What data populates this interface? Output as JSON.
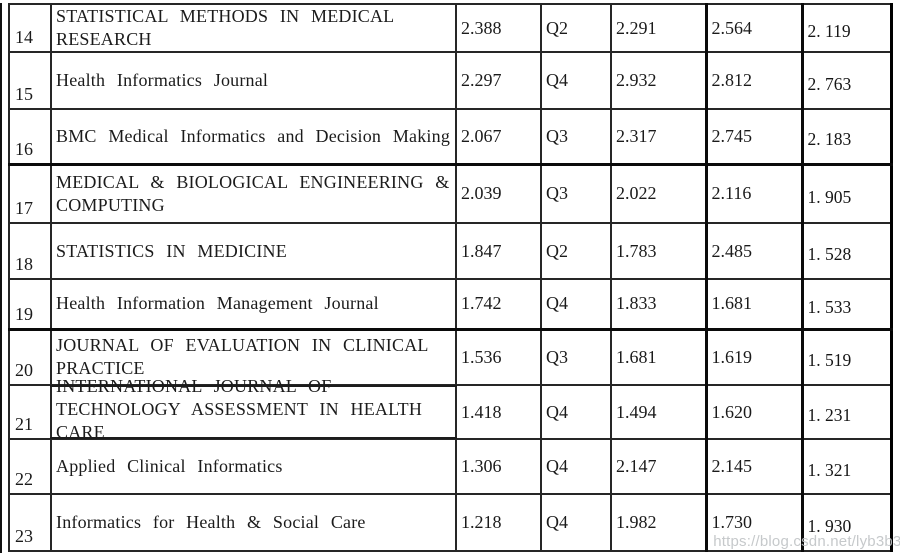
{
  "watermark": {
    "text": "https://blog.csdn.net/lyb3b3b"
  },
  "table": {
    "rows": [
      {
        "num": "14",
        "name_lines": [
          "STATISTICAL METHODS IN MEDICAL",
          "RESEARCH"
        ],
        "values": [
          "2.388",
          "Q2",
          "2.291",
          "2.564",
          "2. 119"
        ]
      },
      {
        "num": "15",
        "name_lines": [
          "Health Informatics Journal"
        ],
        "values": [
          "2.297",
          "Q4",
          "2.932",
          "2.812",
          "2. 763"
        ]
      },
      {
        "num": "16",
        "name_lines": [
          "BMC Medical Informatics and Decision Making"
        ],
        "values": [
          "2.067",
          "Q3",
          "2.317",
          "2.745",
          "2. 183"
        ]
      },
      {
        "num": "17",
        "name_lines": [
          "MEDICAL & BIOLOGICAL ENGINEERING &",
          "COMPUTING"
        ],
        "values": [
          "2.039",
          "Q3",
          "2.022",
          "2.116",
          "1. 905"
        ]
      },
      {
        "num": "18",
        "name_lines": [
          "STATISTICS IN MEDICINE"
        ],
        "values": [
          "1.847",
          "Q2",
          "1.783",
          "2.485",
          "1. 528"
        ]
      },
      {
        "num": "19",
        "name_lines": [
          "Health Information Management Journal"
        ],
        "values": [
          "1.742",
          "Q4",
          "1.833",
          "1.681",
          "1. 533"
        ]
      },
      {
        "num": "20",
        "name_lines": [
          "JOURNAL OF EVALUATION IN CLINICAL",
          "PRACTICE"
        ],
        "values": [
          "1.536",
          "Q3",
          "1.681",
          "1.619",
          "1. 519"
        ]
      },
      {
        "num": "21",
        "name_lines": [
          "INTERNATIONAL JOURNAL OF",
          "TECHNOLOGY ASSESSMENT IN HEALTH",
          "CARE"
        ],
        "values": [
          "1.418",
          "Q4",
          "1.494",
          "1.620",
          "1. 231"
        ]
      },
      {
        "num": "22",
        "name_lines": [
          "Applied Clinical Informatics"
        ],
        "values": [
          "1.306",
          "Q4",
          "2.147",
          "2.145",
          "1. 321"
        ]
      },
      {
        "num": "23",
        "name_lines": [
          "Informatics for Health & Social Care"
        ],
        "values": [
          "1.218",
          "Q4",
          "1.982",
          "1.730",
          "1. 930"
        ]
      }
    ]
  },
  "chart_data": {
    "type": "table",
    "title": "",
    "header_visible": false,
    "rows": [
      [
        "14",
        "STATISTICAL METHODS IN MEDICAL RESEARCH",
        2.388,
        "Q2",
        2.291,
        2.564,
        2.119
      ],
      [
        "15",
        "Health Informatics Journal",
        2.297,
        "Q4",
        2.932,
        2.812,
        2.763
      ],
      [
        "16",
        "BMC Medical Informatics and Decision Making",
        2.067,
        "Q3",
        2.317,
        2.745,
        2.183
      ],
      [
        "17",
        "MEDICAL & BIOLOGICAL ENGINEERING & COMPUTING",
        2.039,
        "Q3",
        2.022,
        2.116,
        1.905
      ],
      [
        "18",
        "STATISTICS IN MEDICINE",
        1.847,
        "Q2",
        1.783,
        2.485,
        1.528
      ],
      [
        "19",
        "Health Information Management Journal",
        1.742,
        "Q4",
        1.833,
        1.681,
        1.533
      ],
      [
        "20",
        "JOURNAL OF EVALUATION IN CLINICAL PRACTICE",
        1.536,
        "Q3",
        1.681,
        1.619,
        1.519
      ],
      [
        "21",
        "INTERNATIONAL JOURNAL OF TECHNOLOGY ASSESSMENT IN HEALTH CARE",
        1.418,
        "Q4",
        1.494,
        1.62,
        1.231
      ],
      [
        "22",
        "Applied Clinical Informatics",
        1.306,
        "Q4",
        2.147,
        2.145,
        1.321
      ],
      [
        "23",
        "Informatics for Health & Social Care",
        1.218,
        "Q4",
        1.982,
        1.73,
        1.93
      ]
    ]
  }
}
